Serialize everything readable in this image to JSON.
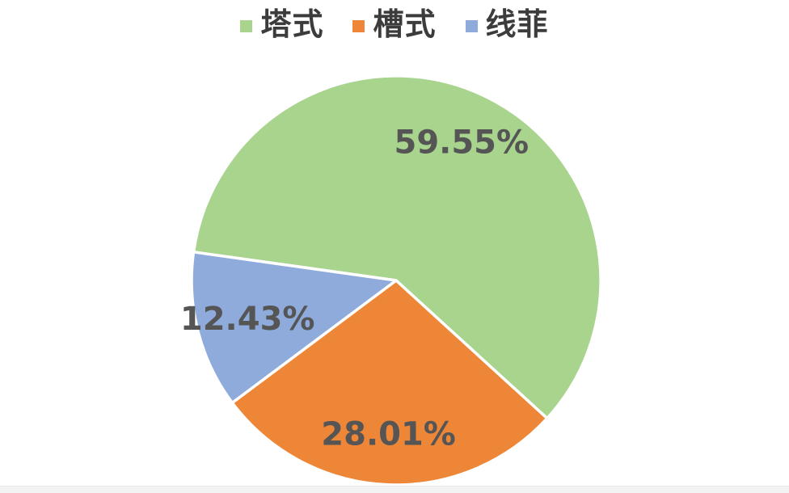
{
  "page": {
    "background": "#ffffff",
    "bottom_strip_color": "#f3f3f3"
  },
  "chart_data": {
    "type": "pie",
    "title": "",
    "categories": [
      "塔式",
      "槽式",
      "线菲"
    ],
    "values": [
      59.55,
      28.01,
      12.43
    ],
    "data_labels": [
      "59.55%",
      "28.01%",
      "12.43%"
    ],
    "slice_colors": [
      "#a9d48e",
      "#ee8638",
      "#8fabdc"
    ],
    "label_color": "#555555",
    "separator_color": "#ffffff",
    "start_angle_math_deg": 172,
    "direction": "clockwise",
    "legend": {
      "position": "top",
      "items": [
        {
          "label": "塔式",
          "color": "#a9d48e"
        },
        {
          "label": "槽式",
          "color": "#ee8638"
        },
        {
          "label": "线菲",
          "color": "#8fabdc"
        }
      ]
    }
  }
}
